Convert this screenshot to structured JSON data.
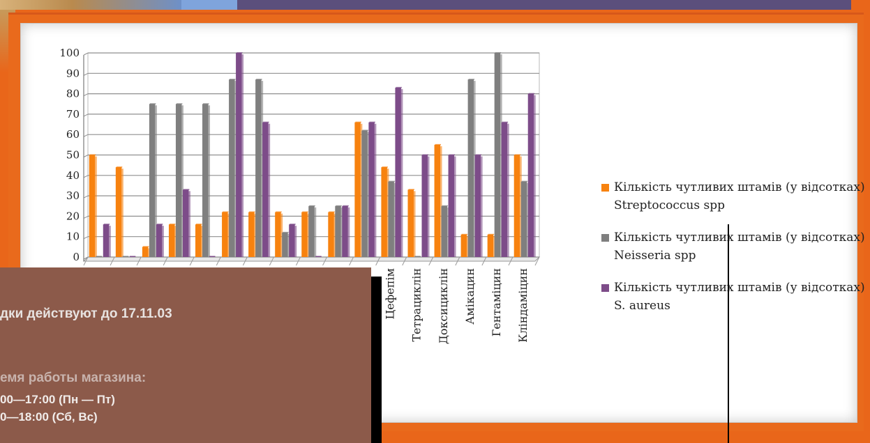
{
  "chart_data": {
    "type": "bar",
    "categories": [
      "",
      "",
      "",
      "",
      "",
      "",
      "",
      "",
      "",
      "",
      "",
      "Цефепім",
      "Тетрациклін",
      "Доксициклін",
      "Амікацин",
      "Гентаміцин",
      "Кліндаміцин"
    ],
    "series": [
      {
        "name": "Кількість чутливих штамів (у відсотках) Streptococcus spp",
        "color": "#f7820f",
        "values": [
          50,
          44,
          5,
          16,
          16,
          22,
          22,
          22,
          22,
          22,
          66,
          44,
          33,
          55,
          11,
          11,
          50
        ]
      },
      {
        "name": "Кількість чутливих штамів (у відсотках) Neisseria spp",
        "color": "#7f7f7f",
        "values": [
          0,
          0,
          75,
          75,
          75,
          87,
          87,
          12,
          25,
          25,
          62,
          37,
          0,
          25,
          87,
          100,
          37
        ]
      },
      {
        "name": "Кількість чутливих штамів (у відсотках) S. aureus",
        "color": "#7d4c89",
        "values": [
          16,
          0,
          16,
          33,
          0,
          100,
          66,
          16,
          0,
          25,
          66,
          83,
          50,
          50,
          50,
          66,
          80
        ]
      }
    ],
    "yticks": [
      "0",
      "10",
      "20",
      "30",
      "40",
      "50",
      "60",
      "70",
      "80",
      "90",
      "100"
    ],
    "ylim": [
      0,
      100
    ],
    "grid": true,
    "legend_position": "right",
    "title": "",
    "xlabel": "",
    "ylabel": ""
  },
  "overlay": {
    "discount_text": "дки действуют до 17.11.03",
    "hours_title": "емя работы магазина:",
    "hours_weekday": "00—17:00 (Пн — Пт)",
    "hours_weekend": "0—18:00 (Сб, Вс)",
    "background_color": "#8c5a4a"
  },
  "colors": {
    "frame": "#e9661a",
    "panel": "#ffffff"
  }
}
